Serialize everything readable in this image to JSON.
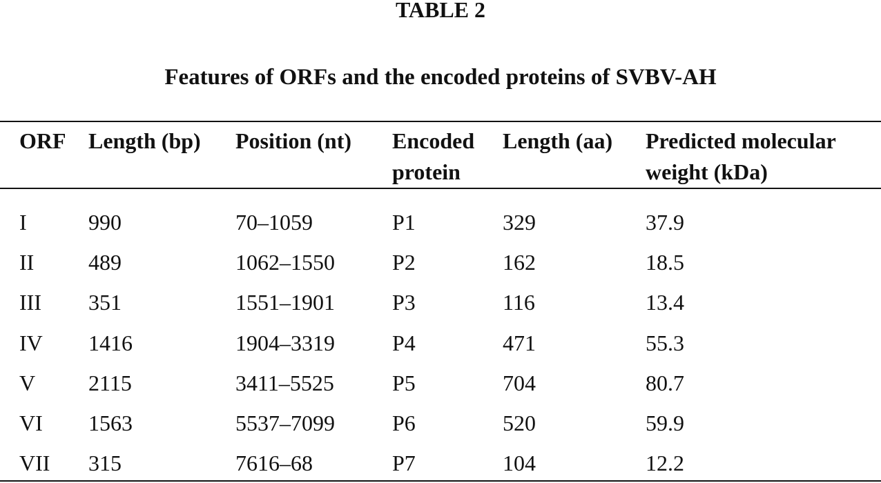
{
  "header": {
    "title": "TABLE 2",
    "caption": "Features of ORFs and the encoded proteins of SVBV-AH"
  },
  "table": {
    "columns": [
      "ORF",
      "Length (bp)",
      "Position (nt)",
      "Encoded protein",
      "Length (aa)",
      "Predicted molecular weight (kDa)"
    ],
    "rows": [
      [
        "I",
        "990",
        "70–1059",
        "P1",
        "329",
        "37.9"
      ],
      [
        "II",
        "489",
        "1062–1550",
        "P2",
        "162",
        "18.5"
      ],
      [
        "III",
        "351",
        "1551–1901",
        "P3",
        "116",
        "13.4"
      ],
      [
        "IV",
        "1416",
        "1904–3319",
        "P4",
        "471",
        "55.3"
      ],
      [
        "V",
        "2115",
        "3411–5525",
        "P5",
        "704",
        "80.7"
      ],
      [
        "VI",
        "1563",
        "5537–7099",
        "P6",
        "520",
        "59.9"
      ],
      [
        "VII",
        "315",
        "7616–68",
        "P7",
        "104",
        "12.2"
      ]
    ]
  }
}
